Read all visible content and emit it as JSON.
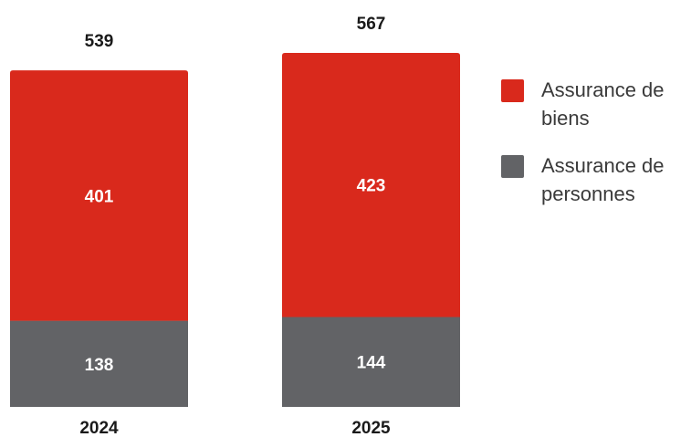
{
  "chart_data": {
    "type": "bar",
    "stacked": true,
    "categories": [
      "2024",
      "2025"
    ],
    "series": [
      {
        "name": "Assurance de biens",
        "values": [
          401,
          423
        ],
        "color": "#d9291c"
      },
      {
        "name": "Assurance de personnes",
        "values": [
          138,
          144
        ],
        "color": "#626366"
      }
    ],
    "totals": [
      539,
      567
    ],
    "title": "",
    "xlabel": "",
    "ylabel": "",
    "ylim": [
      0,
      567
    ],
    "grid": false,
    "legend_position": "right"
  }
}
